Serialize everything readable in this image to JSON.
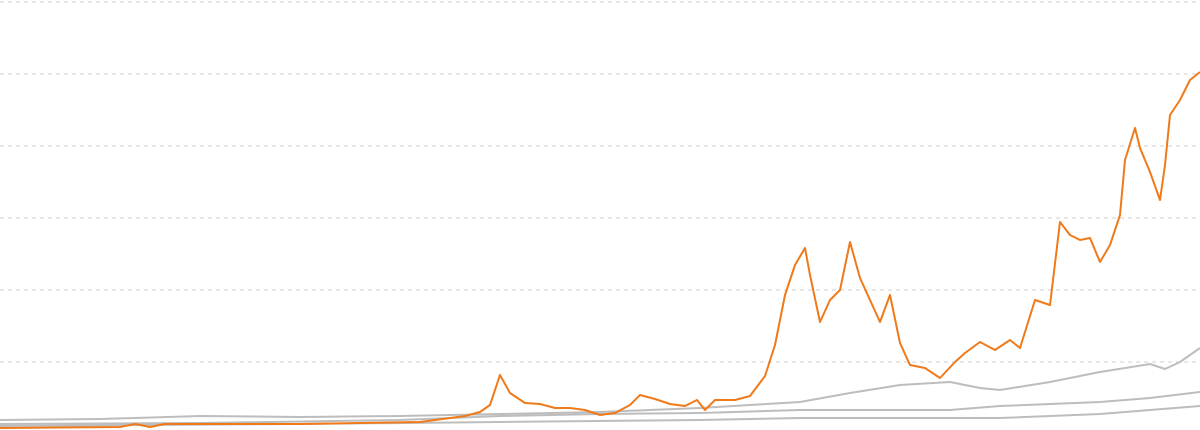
{
  "chart_data": {
    "type": "line",
    "xlim": [
      0,
      1200
    ],
    "ylim": [
      0,
      434
    ],
    "yticks": [
      72,
      144,
      216,
      288,
      360,
      432
    ],
    "grid": true,
    "series": [
      {
        "color": "#bdbdbd",
        "x": [
          0,
          100,
          200,
          300,
          400,
          500,
          600,
          650,
          700,
          750,
          800,
          850,
          900,
          950,
          980,
          1000,
          1050,
          1100,
          1150,
          1165,
          1180,
          1200
        ],
        "values": [
          14,
          15,
          18,
          17,
          18,
          20,
          22,
          24,
          26,
          29,
          32,
          41,
          49,
          52,
          46,
          44,
          52,
          62,
          70,
          65,
          72,
          86
        ]
      },
      {
        "color": "#bdbdbd",
        "x": [
          0,
          200,
          400,
          500,
          600,
          700,
          800,
          900,
          950,
          1000,
          1100,
          1150,
          1200
        ],
        "values": [
          10,
          11,
          14,
          18,
          20,
          21,
          24,
          24,
          24,
          28,
          32,
          36,
          42
        ]
      },
      {
        "color": "#bdbdbd",
        "x": [
          0,
          300,
          500,
          700,
          800,
          900,
          1000,
          1100,
          1150,
          1200
        ],
        "values": [
          8,
          10,
          12,
          14,
          16,
          16,
          16,
          20,
          24,
          28
        ]
      },
      {
        "color": "#f07a1a",
        "x": [
          0,
          120,
          135,
          150,
          165,
          300,
          360,
          420,
          450,
          465,
          480,
          490,
          500,
          510,
          525,
          540,
          555,
          570,
          585,
          600,
          615,
          630,
          640,
          655,
          670,
          685,
          697,
          705,
          715,
          735,
          750,
          765,
          775,
          785,
          795,
          805,
          810,
          820,
          830,
          840,
          850,
          860,
          870,
          880,
          890,
          900,
          910,
          925,
          940,
          955,
          965,
          980,
          995,
          1010,
          1020,
          1035,
          1050,
          1060,
          1070,
          1080,
          1090,
          1100,
          1110,
          1120,
          1125,
          1135,
          1140,
          1150,
          1160,
          1165,
          1170,
          1180,
          1190,
          1200
        ],
        "values": [
          6,
          7,
          10,
          7,
          10,
          10,
          11,
          12,
          16,
          18,
          22,
          29,
          59,
          41,
          31,
          30,
          26,
          26,
          24,
          19,
          21,
          29,
          39,
          35,
          30,
          28,
          34,
          24,
          34,
          34,
          38,
          58,
          89,
          139,
          169,
          186,
          159,
          112,
          134,
          144,
          192,
          156,
          134,
          112,
          139,
          91,
          69,
          66,
          56,
          72,
          81,
          92,
          84,
          94,
          86,
          134,
          129,
          212,
          199,
          194,
          196,
          172,
          189,
          219,
          274,
          306,
          286,
          262,
          234,
          269,
          319,
          334,
          354,
          362
        ]
      }
    ]
  }
}
